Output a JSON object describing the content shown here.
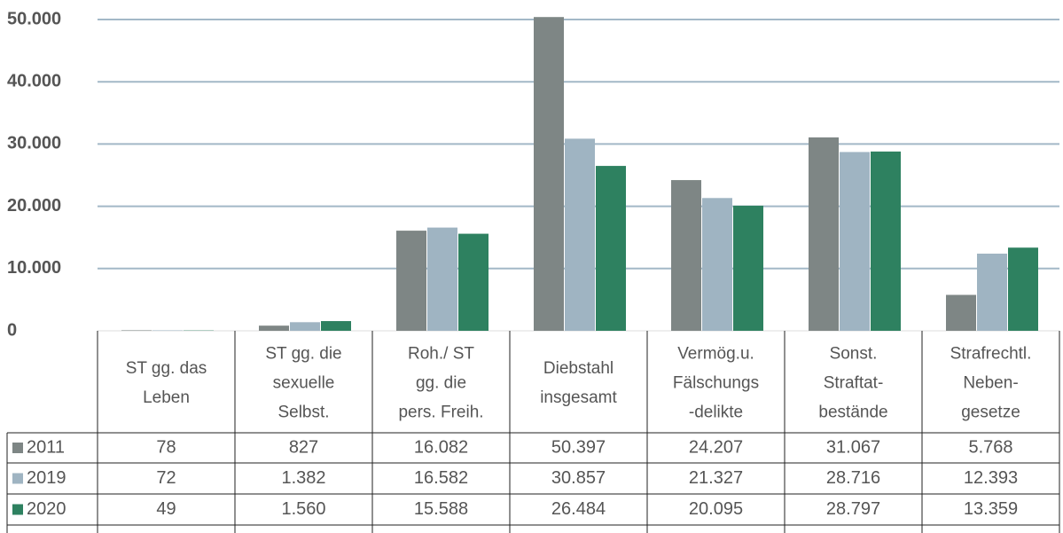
{
  "chart_data": {
    "type": "bar",
    "categories": [
      [
        "ST gg. das",
        "Leben"
      ],
      [
        "ST gg. die",
        "sexuelle",
        "Selbst."
      ],
      [
        "Roh./ ST",
        "gg. die",
        "pers. Freih."
      ],
      [
        "Diebstahl",
        "insgesamt"
      ],
      [
        "Vermög.u.",
        "Fälschungs",
        "-delikte"
      ],
      [
        "Sonst.",
        "Straftat-",
        "bestände"
      ],
      [
        "Strafrechtl.",
        "Neben-",
        "gesetze"
      ]
    ],
    "series": [
      {
        "name": "2011",
        "color": "#7e8685",
        "values": [
          78,
          827,
          16082,
          50397,
          24207,
          31067,
          5768
        ],
        "value_labels": [
          "78",
          "827",
          "16.082",
          "50.397",
          "24.207",
          "31.067",
          "5.768"
        ]
      },
      {
        "name": "2019",
        "color": "#9fb4c2",
        "values": [
          72,
          1382,
          16582,
          30857,
          21327,
          28716,
          12393
        ],
        "value_labels": [
          "72",
          "1.382",
          "16.582",
          "30.857",
          "21.327",
          "28.716",
          "12.393"
        ]
      },
      {
        "name": "2020",
        "color": "#2e8160",
        "values": [
          49,
          1560,
          15588,
          26484,
          20095,
          28797,
          13359
        ],
        "value_labels": [
          "49",
          "1.560",
          "15.588",
          "26.484",
          "20.095",
          "28.797",
          "13.359"
        ]
      }
    ],
    "ylim": [
      0,
      50000
    ],
    "yticks": [
      0,
      {
        "value": 10000,
        "label": "10.000"
      },
      {
        "value": 20000,
        "label": "20.000"
      },
      {
        "value": 30000,
        "label": "30.000"
      },
      {
        "value": 40000,
        "label": "40.000"
      },
      {
        "value": 50000,
        "label": "50.000"
      }
    ],
    "grid": true
  }
}
